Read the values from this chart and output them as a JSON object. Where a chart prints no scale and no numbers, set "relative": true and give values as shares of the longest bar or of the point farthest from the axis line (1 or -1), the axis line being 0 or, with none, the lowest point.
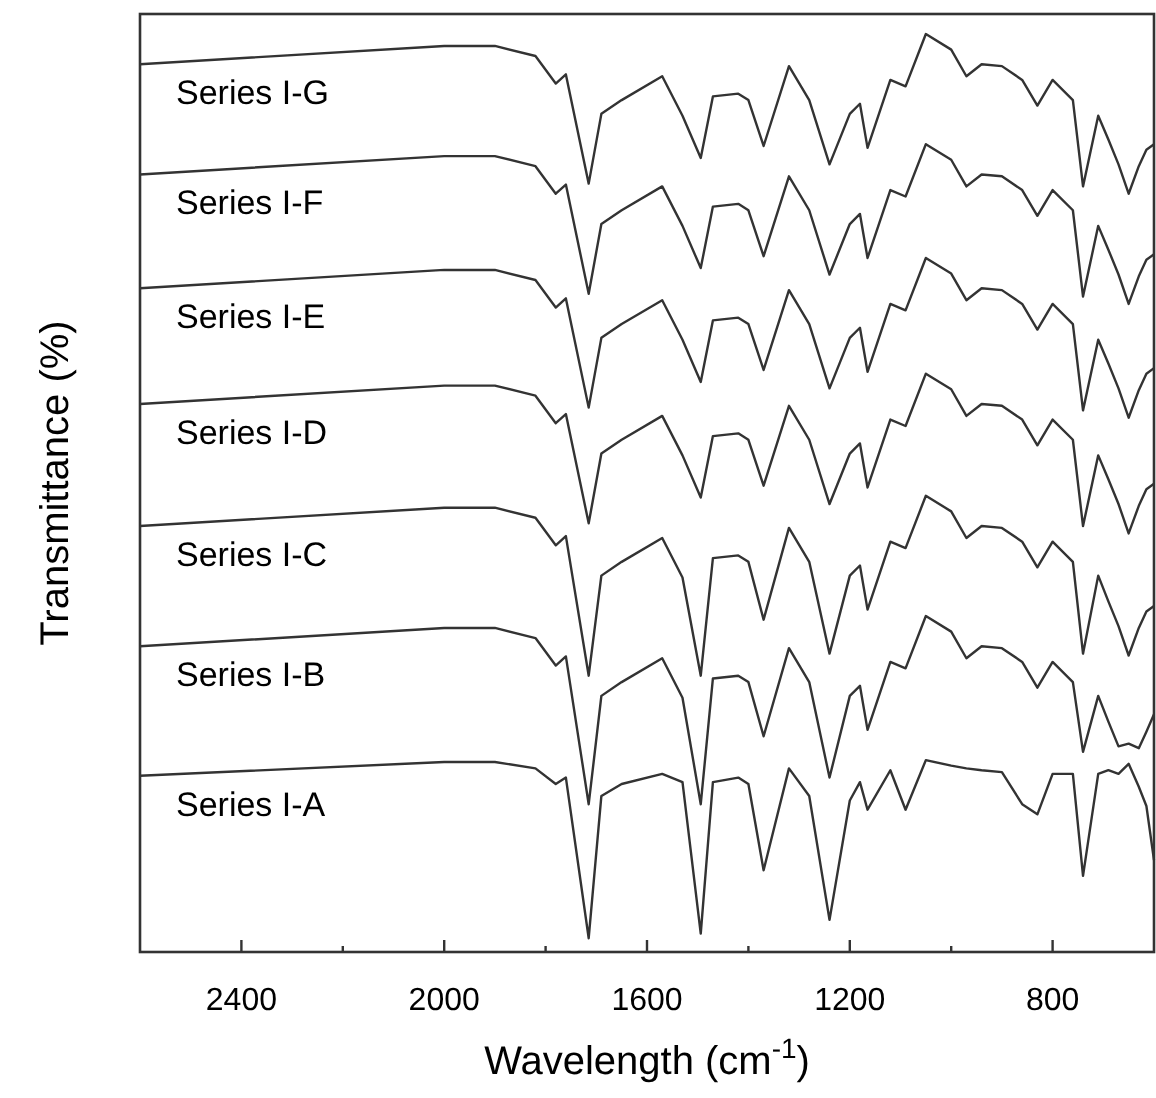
{
  "chart_data": {
    "type": "line",
    "relative": true,
    "xlabel": "Wavelength (cm$^{-1}$)",
    "ylabel": "Transmittance (%)",
    "xlim": [
      2600,
      600
    ],
    "xticks": [
      {
        "value": 2400,
        "label": "2400"
      },
      {
        "value": 2200,
        "label": null
      },
      {
        "value": 2000,
        "label": "2000"
      },
      {
        "value": 1800,
        "label": null
      },
      {
        "value": 1600,
        "label": "1600"
      },
      {
        "value": 1400,
        "label": null
      },
      {
        "value": 1200,
        "label": "1200"
      },
      {
        "value": 1000,
        "label": null
      },
      {
        "value": 800,
        "label": "800"
      }
    ],
    "grid": false,
    "x": [
      2600,
      2000,
      1900,
      1820,
      1780,
      1760,
      1715,
      1690,
      1650,
      1570,
      1530,
      1494,
      1470,
      1420,
      1400,
      1370,
      1320,
      1280,
      1240,
      1200,
      1180,
      1165,
      1120,
      1090,
      1050,
      1000,
      970,
      940,
      900,
      860,
      830,
      800,
      760,
      740,
      710,
      690,
      670,
      650,
      630,
      615,
      600
    ],
    "series": [
      {
        "name": "Series I-G",
        "color": "#333333",
        "values": [
          0.967,
          0.987,
          0.987,
          0.976,
          0.946,
          0.956,
          0.837,
          0.913,
          0.928,
          0.954,
          0.911,
          0.865,
          0.932,
          0.935,
          0.928,
          0.878,
          0.965,
          0.928,
          0.858,
          0.913,
          0.924,
          0.876,
          0.95,
          0.943,
          1.0,
          0.983,
          0.954,
          0.967,
          0.965,
          0.95,
          0.922,
          0.95,
          0.928,
          0.834,
          0.911,
          0.885,
          0.858,
          0.826,
          0.856,
          0.874,
          0.88
        ]
      },
      {
        "name": "Series I-F",
        "color": "#333333",
        "values": [
          0.847,
          0.867,
          0.867,
          0.856,
          0.826,
          0.836,
          0.717,
          0.793,
          0.808,
          0.834,
          0.791,
          0.745,
          0.812,
          0.815,
          0.808,
          0.758,
          0.845,
          0.808,
          0.738,
          0.793,
          0.804,
          0.756,
          0.83,
          0.823,
          0.88,
          0.863,
          0.834,
          0.847,
          0.845,
          0.83,
          0.802,
          0.83,
          0.808,
          0.714,
          0.791,
          0.765,
          0.738,
          0.706,
          0.736,
          0.754,
          0.76
        ]
      },
      {
        "name": "Series I-E",
        "color": "#333333",
        "values": [
          0.723,
          0.743,
          0.743,
          0.732,
          0.702,
          0.712,
          0.593,
          0.669,
          0.684,
          0.71,
          0.667,
          0.621,
          0.688,
          0.691,
          0.684,
          0.634,
          0.721,
          0.684,
          0.614,
          0.669,
          0.68,
          0.632,
          0.706,
          0.699,
          0.756,
          0.739,
          0.71,
          0.723,
          0.721,
          0.706,
          0.678,
          0.706,
          0.684,
          0.59,
          0.667,
          0.641,
          0.614,
          0.582,
          0.612,
          0.63,
          0.636
        ]
      },
      {
        "name": "Series I-D",
        "color": "#333333",
        "values": [
          0.597,
          0.617,
          0.617,
          0.606,
          0.576,
          0.586,
          0.467,
          0.543,
          0.558,
          0.584,
          0.541,
          0.495,
          0.562,
          0.565,
          0.558,
          0.508,
          0.595,
          0.558,
          0.488,
          0.543,
          0.554,
          0.506,
          0.58,
          0.573,
          0.63,
          0.613,
          0.584,
          0.597,
          0.595,
          0.58,
          0.552,
          0.58,
          0.558,
          0.464,
          0.541,
          0.515,
          0.488,
          0.456,
          0.486,
          0.504,
          0.51
        ]
      },
      {
        "name": "Series I-C",
        "color": "#333333",
        "values": [
          0.464,
          0.484,
          0.484,
          0.473,
          0.443,
          0.453,
          0.301,
          0.41,
          0.425,
          0.451,
          0.408,
          0.301,
          0.429,
          0.432,
          0.425,
          0.362,
          0.462,
          0.425,
          0.325,
          0.41,
          0.421,
          0.373,
          0.447,
          0.44,
          0.497,
          0.48,
          0.451,
          0.464,
          0.462,
          0.447,
          0.419,
          0.447,
          0.425,
          0.325,
          0.41,
          0.382,
          0.355,
          0.323,
          0.353,
          0.371,
          0.377
        ]
      },
      {
        "name": "Series I-B",
        "color": "#333333",
        "values": [
          0.333,
          0.353,
          0.353,
          0.342,
          0.312,
          0.322,
          0.161,
          0.279,
          0.294,
          0.32,
          0.277,
          0.161,
          0.298,
          0.301,
          0.294,
          0.235,
          0.331,
          0.294,
          0.19,
          0.279,
          0.29,
          0.242,
          0.316,
          0.309,
          0.366,
          0.349,
          0.32,
          0.333,
          0.331,
          0.316,
          0.288,
          0.316,
          0.294,
          0.218,
          0.279,
          0.251,
          0.224,
          0.227,
          0.222,
          0.24,
          0.259
        ]
      },
      {
        "name": "Series I-A",
        "color": "#333333",
        "values": [
          0.192,
          0.207,
          0.207,
          0.2,
          0.183,
          0.19,
          0.015,
          0.17,
          0.183,
          0.194,
          0.185,
          0.02,
          0.185,
          0.19,
          0.183,
          0.089,
          0.2,
          0.17,
          0.035,
          0.165,
          0.185,
          0.155,
          0.198,
          0.155,
          0.209,
          0.203,
          0.2,
          0.198,
          0.196,
          0.161,
          0.15,
          0.194,
          0.194,
          0.083,
          0.194,
          0.198,
          0.194,
          0.205,
          0.18,
          0.159,
          0.1
        ]
      }
    ]
  }
}
